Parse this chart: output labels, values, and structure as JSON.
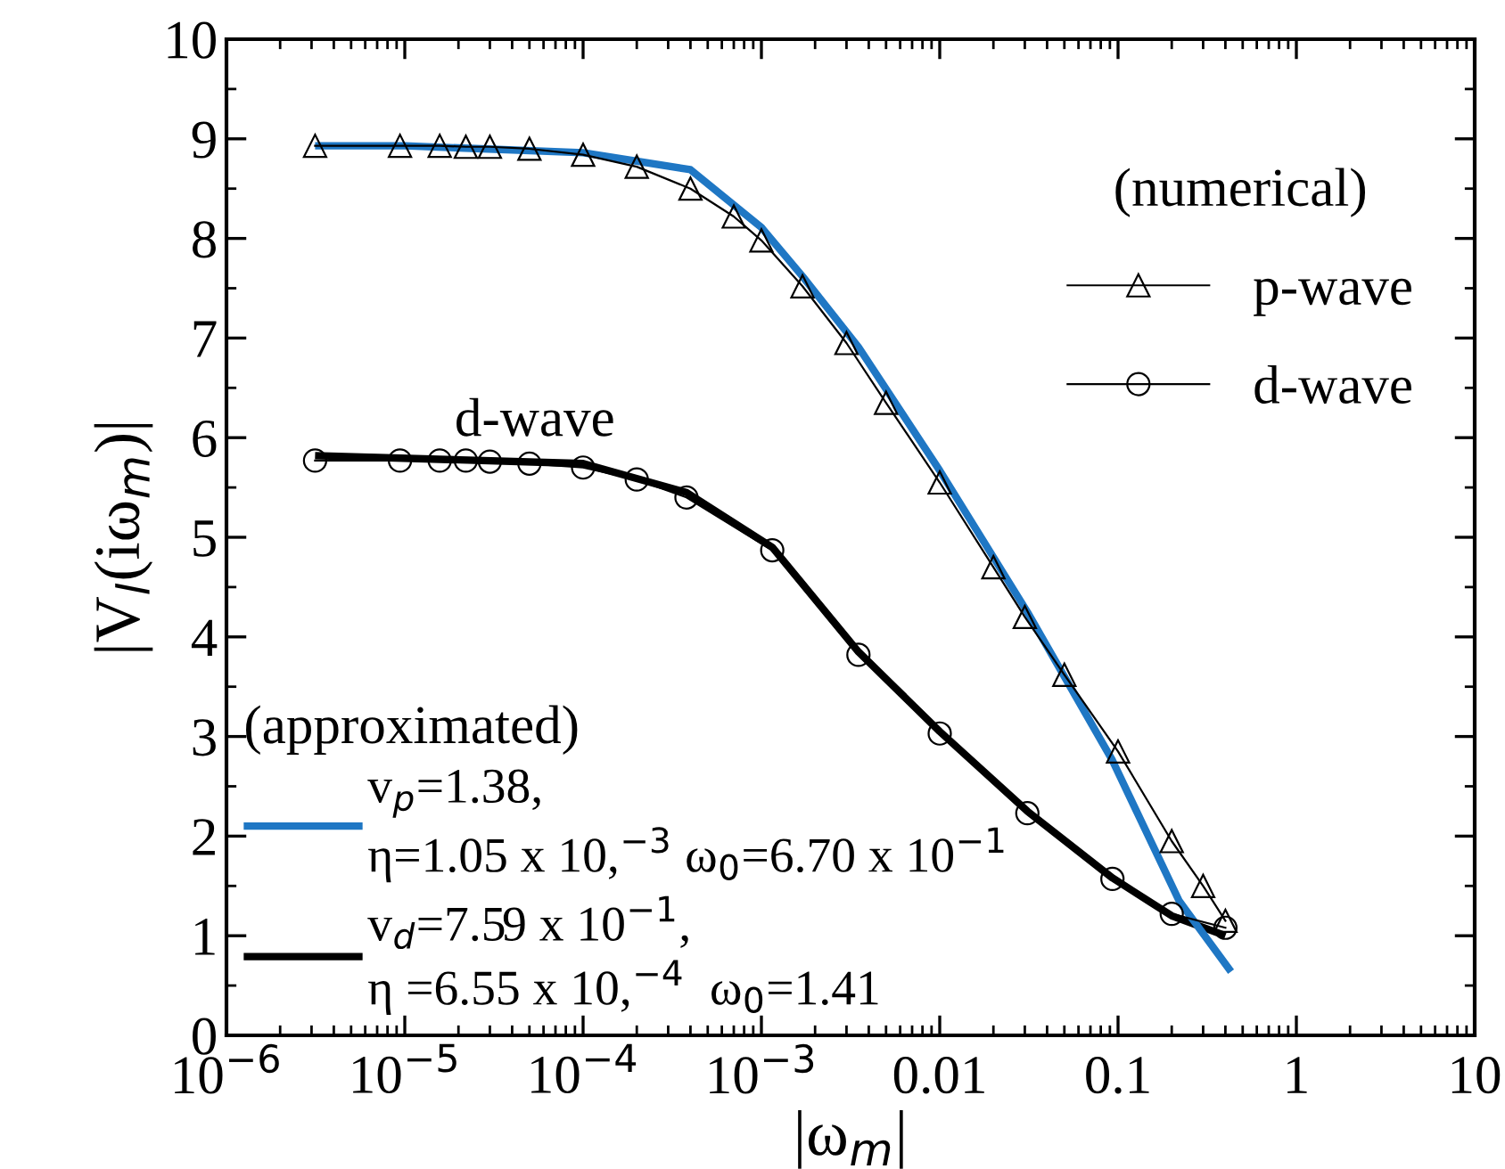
{
  "chart_data": {
    "type": "line",
    "xlabel": "|ω$_{m}$|",
    "ylabel": "|V$_{l}$(iω$_{m}$)|",
    "log": "x",
    "xlim": [
      1e-06,
      10
    ],
    "ylim": [
      0,
      10
    ],
    "xticks": [
      {
        "value": 1e-06,
        "label": "10$^{−6}$"
      },
      {
        "value": 1e-05,
        "label": "10$^{−5}$"
      },
      {
        "value": 0.0001,
        "label": "10$^{−4}$"
      },
      {
        "value": 0.001,
        "label": "10$^{−3}$"
      },
      0.01,
      0.1,
      1,
      10
    ],
    "yticks": [
      0,
      1,
      2,
      3,
      4,
      5,
      6,
      7,
      8,
      9,
      10
    ],
    "grid": false,
    "legend": "top right",
    "legend_title": "(numerical)",
    "annotations": [
      "(approximated)",
      "d-wave"
    ],
    "series": [
      {
        "name": "p-wave",
        "color": "#000000",
        "marker": "triangle",
        "x": [
          3.14e-06,
          9.4e-06,
          1.57e-05,
          2.2e-05,
          3e-05,
          5e-05,
          0.0001,
          0.0002,
          0.0004,
          0.0007,
          0.001,
          0.0017,
          0.003,
          0.005,
          0.01,
          0.02,
          0.03,
          0.05,
          0.1,
          0.2,
          0.3,
          0.4
        ],
        "values": [
          8.93,
          8.93,
          8.93,
          8.92,
          8.92,
          8.9,
          8.84,
          8.72,
          8.5,
          8.22,
          7.98,
          7.52,
          6.95,
          6.35,
          5.55,
          4.7,
          4.2,
          3.62,
          2.85,
          1.95,
          1.5,
          1.15
        ]
      },
      {
        "name": "d-wave",
        "color": "#000000",
        "marker": "circle",
        "x": [
          3.14e-06,
          9.4e-06,
          1.57e-05,
          2.2e-05,
          3e-05,
          5e-05,
          0.0001,
          0.0002,
          0.00038,
          0.00115,
          0.0035,
          0.01,
          0.031,
          0.093,
          0.2,
          0.4
        ],
        "values": [
          5.77,
          5.77,
          5.77,
          5.77,
          5.76,
          5.74,
          5.7,
          5.58,
          5.4,
          4.87,
          3.82,
          3.03,
          2.23,
          1.57,
          1.22,
          1.08
        ]
      },
      {
        "name": "v$_{p}$=1.38,\nη=1.05 x 10,$^{−3}$ ω$_{0}$=6.70 x 10$^{−1}$",
        "color": "#1f77c4",
        "x": [
          3.14e-06,
          1e-05,
          0.0001,
          0.0004,
          0.001,
          0.0017,
          0.0035,
          0.01,
          0.031,
          0.093,
          0.22,
          0.43
        ],
        "values": [
          8.93,
          8.93,
          8.86,
          8.69,
          8.11,
          7.62,
          6.91,
          5.67,
          4.25,
          2.76,
          1.35,
          0.64
        ]
      },
      {
        "name": "v$_{d}$=7.59 x 10$^{−1}$,\nη =6.55 x 10,$^{−4}$  ω$_{0}$=1.41",
        "color": "#000000",
        "x": [
          3.14e-06,
          0.0001,
          0.00038,
          0.00115,
          0.0035,
          0.01,
          0.031,
          0.093,
          0.2,
          0.4
        ],
        "values": [
          5.82,
          5.74,
          5.45,
          4.9,
          3.85,
          3.05,
          2.25,
          1.58,
          1.2,
          1.0
        ]
      }
    ]
  }
}
